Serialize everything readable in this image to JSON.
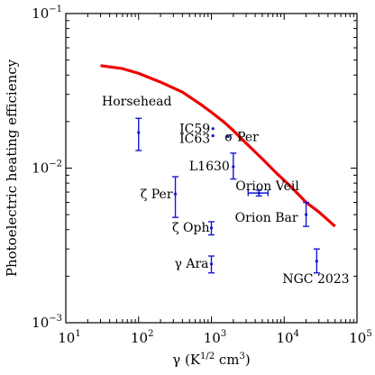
{
  "chart_data": {
    "type": "scatter",
    "xscale": "log",
    "yscale": "log",
    "xlim": [
      10,
      100000
    ],
    "ylim": [
      0.001,
      0.1
    ],
    "xlabel": "γ (K^{1/2} cm^3)",
    "xlabel_parts": [
      "γ (K",
      "1/2",
      " cm",
      "3",
      ")"
    ],
    "ylabel": "Photoelectric heating efficiency",
    "x_ticks": [
      {
        "value": 10,
        "base": "10",
        "exp": "1"
      },
      {
        "value": 100,
        "base": "10",
        "exp": "2"
      },
      {
        "value": 1000,
        "base": "10",
        "exp": "3"
      },
      {
        "value": 10000,
        "base": "10",
        "exp": "4"
      },
      {
        "value": 100000,
        "base": "10",
        "exp": "5"
      }
    ],
    "y_ticks": [
      {
        "value": 0.001,
        "base": "10",
        "exp": "−3"
      },
      {
        "value": 0.01,
        "base": "10",
        "exp": "−2"
      },
      {
        "value": 0.1,
        "base": "10",
        "exp": "−1"
      }
    ],
    "curve": {
      "color": "#ee0000",
      "x": [
        30,
        60,
        100,
        200,
        400,
        700,
        1000,
        1500,
        2000,
        3000,
        5000,
        8000,
        12000,
        20000,
        30000,
        50000
      ],
      "y": [
        0.046,
        0.044,
        0.041,
        0.036,
        0.031,
        0.026,
        0.023,
        0.0198,
        0.0175,
        0.0145,
        0.0115,
        0.0092,
        0.0077,
        0.006,
        0.0052,
        0.0042
      ]
    },
    "points": [
      {
        "label": "Horsehead",
        "x": 100,
        "y": 0.017,
        "ylo": 0.013,
        "yhi": 0.021
      },
      {
        "label": "IC59",
        "x": 1050,
        "y": 0.018
      },
      {
        "label": "IC63",
        "x": 1050,
        "y": 0.0162
      },
      {
        "label": "σ Per",
        "x": 1700,
        "y": 0.016
      },
      {
        "label": "L1630",
        "x": 2000,
        "y": 0.0102,
        "ylo": 0.0085,
        "yhi": 0.0125
      },
      {
        "label": "Orion Veil",
        "x": 4500,
        "y": 0.0069,
        "ylo": 0.0066,
        "yhi": 0.0072,
        "xlo": 3200,
        "xhi": 6000
      },
      {
        "label": "ζ Per",
        "x": 320,
        "y": 0.0068,
        "ylo": 0.0048,
        "yhi": 0.0088
      },
      {
        "label": "Orion Bar",
        "x": 20000,
        "y": 0.005,
        "ylo": 0.0042,
        "yhi": 0.006
      },
      {
        "label": "ζ Oph",
        "x": 1000,
        "y": 0.0041,
        "ylo": 0.0037,
        "yhi": 0.0045
      },
      {
        "label": "γ Ara",
        "x": 1000,
        "y": 0.0024,
        "ylo": 0.0021,
        "yhi": 0.0027
      },
      {
        "label": "NGC 2023",
        "x": 28000,
        "y": 0.0025,
        "ylo": 0.0021,
        "yhi": 0.003
      }
    ],
    "point_color": "#1515d6"
  }
}
